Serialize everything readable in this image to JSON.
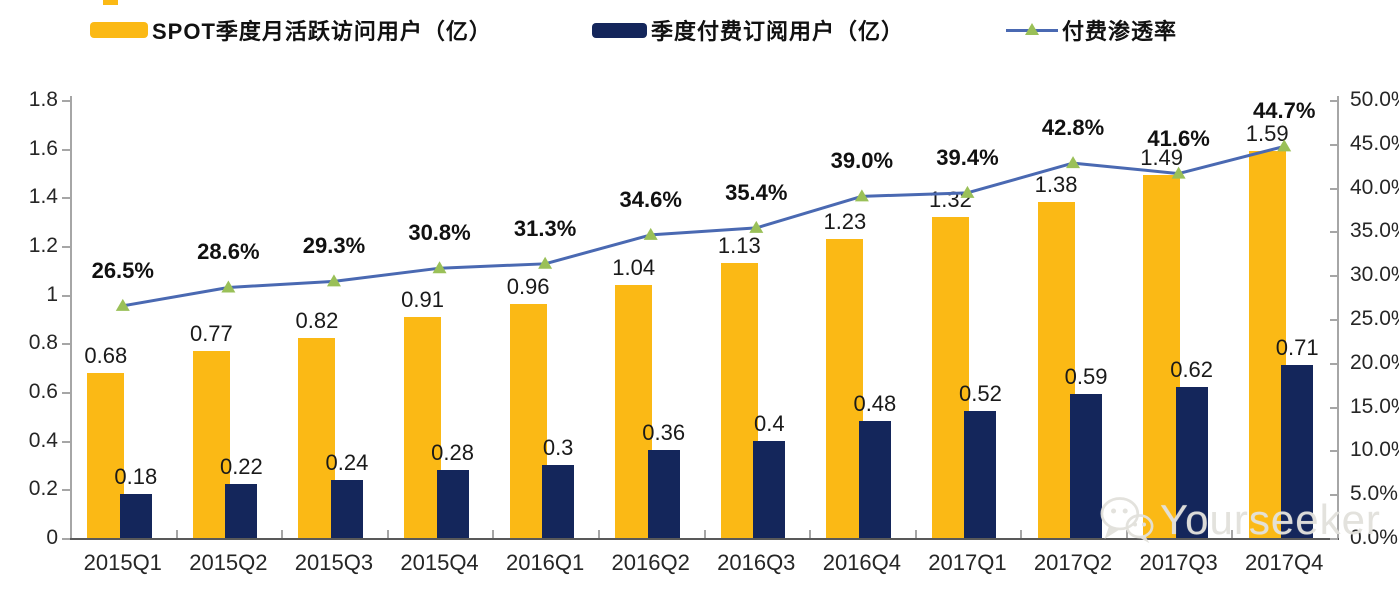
{
  "colors": {
    "yellow": "#FBB915",
    "navy": "#14265B",
    "line_blue": "#4A69B2",
    "marker_green": "#9AC058"
  },
  "legend": {
    "mau_label": "SPOT季度月活跃访问用户（亿）",
    "subs_label": "季度付费订阅用户（亿）",
    "penetration_label": "付费渗透率"
  },
  "watermark": {
    "icon": "wechat-icon",
    "text": "Yourseeker"
  },
  "chart_data": {
    "type": "bar",
    "subtype": "combo-bar-line",
    "categories": [
      "2015Q1",
      "2015Q2",
      "2015Q3",
      "2015Q4",
      "2016Q1",
      "2016Q2",
      "2016Q3",
      "2016Q4",
      "2017Q1",
      "2017Q2",
      "2017Q3",
      "2017Q4"
    ],
    "series": [
      {
        "name": "SPOT季度月活跃访问用户（亿）",
        "type": "bar",
        "axis": "left",
        "values": [
          0.68,
          0.77,
          0.82,
          0.91,
          0.96,
          1.04,
          1.13,
          1.23,
          1.32,
          1.38,
          1.49,
          1.59
        ],
        "labels": [
          "0.68",
          "0.77",
          "0.82",
          "0.91",
          "0.96",
          "1.04",
          "1.13",
          "1.23",
          "1.32",
          "1.38",
          "1.49",
          "1.59"
        ]
      },
      {
        "name": "季度付费订阅用户（亿）",
        "type": "bar",
        "axis": "left",
        "values": [
          0.18,
          0.22,
          0.24,
          0.28,
          0.3,
          0.36,
          0.4,
          0.48,
          0.52,
          0.59,
          0.62,
          0.71
        ],
        "labels": [
          "0.18",
          "0.22",
          "0.24",
          "0.28",
          "0.3",
          "0.36",
          "0.4",
          "0.48",
          "0.52",
          "0.59",
          "0.62",
          "0.71"
        ]
      },
      {
        "name": "付费渗透率",
        "type": "line",
        "axis": "right",
        "values": [
          26.5,
          28.6,
          29.3,
          30.8,
          31.3,
          34.6,
          35.4,
          39.0,
          39.4,
          42.8,
          41.6,
          44.7
        ],
        "labels": [
          "26.5%",
          "28.6%",
          "29.3%",
          "30.8%",
          "31.3%",
          "34.6%",
          "35.4%",
          "39.0%",
          "39.4%",
          "42.8%",
          "41.6%",
          "44.7%"
        ]
      }
    ],
    "left_axis": {
      "min": 0,
      "max": 1.8,
      "step": 0.2,
      "ticks": [
        "1.8",
        "1.6",
        "1.4",
        "1.2",
        "1",
        "0.8",
        "0.6",
        "0.4",
        "0.2",
        "0"
      ]
    },
    "right_axis": {
      "min": 0,
      "max": 50,
      "step": 5,
      "ticks": [
        "50.0%",
        "45.0%",
        "40.0%",
        "35.0%",
        "30.0%",
        "25.0%",
        "20.0%",
        "15.0%",
        "10.0%",
        "5.0%",
        "0.0%"
      ]
    },
    "grid": false,
    "legend_position": "top"
  }
}
